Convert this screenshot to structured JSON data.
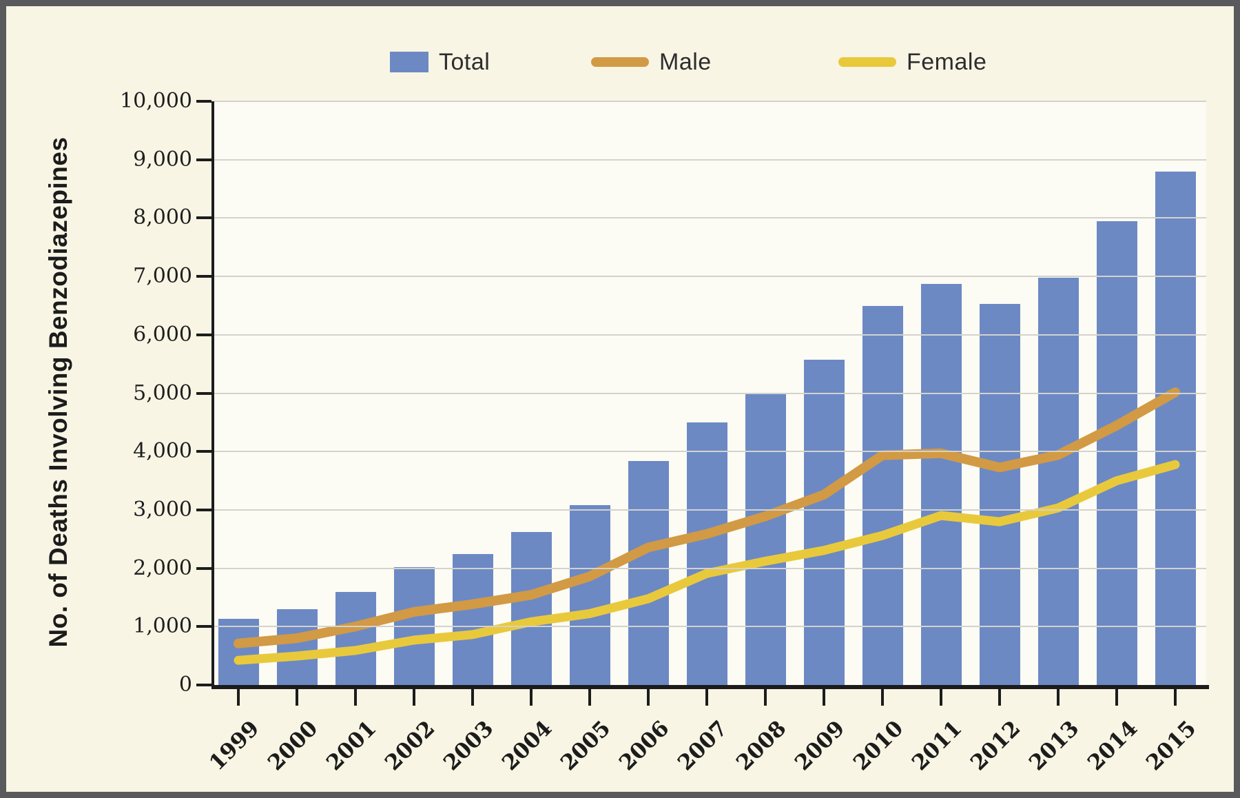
{
  "figure": {
    "background_color": "#f8f5e5",
    "plot_background_color": "#fcfbf4",
    "border_color": "#595a5c",
    "gridline_color": "#d3d2cc",
    "axis_color": "#1c1c1c"
  },
  "legend": {
    "items": [
      {
        "label": "Total",
        "swatch": "bar-swatch",
        "color": "#6c89c4"
      },
      {
        "label": "Male",
        "swatch": "line-swatch",
        "color": "#d29a44"
      },
      {
        "label": "Female",
        "swatch": "line-swatch",
        "color": "#e9c93c"
      }
    ]
  },
  "chart_data": {
    "type": "bar",
    "subtype": "bar-with-line-overlay",
    "title": "",
    "xlabel": "",
    "ylabel": "No. of Deaths Involving Benzodiazepines",
    "categories": [
      "1999",
      "2000",
      "2001",
      "2002",
      "2003",
      "2004",
      "2005",
      "2006",
      "2007",
      "2008",
      "2009",
      "2010",
      "2011",
      "2012",
      "2013",
      "2014",
      "2015"
    ],
    "series": [
      {
        "name": "Total",
        "type": "bar",
        "color": "#6c89c4",
        "values": [
          1135,
          1298,
          1594,
          2022,
          2248,
          2627,
          3084,
          3835,
          4500,
          5010,
          5567,
          6497,
          6872,
          6524,
          6973,
          7945,
          8791
        ]
      },
      {
        "name": "Male",
        "type": "line",
        "color": "#d29a44",
        "stroke_width": 14,
        "values": [
          712,
          802,
          1002,
          1253,
          1384,
          1544,
          1861,
          2357,
          2588,
          2890,
          3261,
          3936,
          3969,
          3727,
          3940,
          4446,
          5015
        ]
      },
      {
        "name": "Female",
        "type": "line",
        "color": "#e9c93c",
        "stroke_width": 13,
        "values": [
          423,
          496,
          592,
          769,
          864,
          1083,
          1223,
          1478,
          1912,
          2120,
          2306,
          2561,
          2903,
          2797,
          3033,
          3499,
          3776
        ]
      }
    ],
    "ylim": [
      0,
      10000
    ],
    "ytick_step": 1000,
    "ytick_labels": [
      "0",
      "1,000",
      "2,000",
      "3,000",
      "4,000",
      "5,000",
      "6,000",
      "7,000",
      "8,000",
      "9,000",
      "10,000"
    ],
    "grid": true,
    "legend_position": "top"
  }
}
